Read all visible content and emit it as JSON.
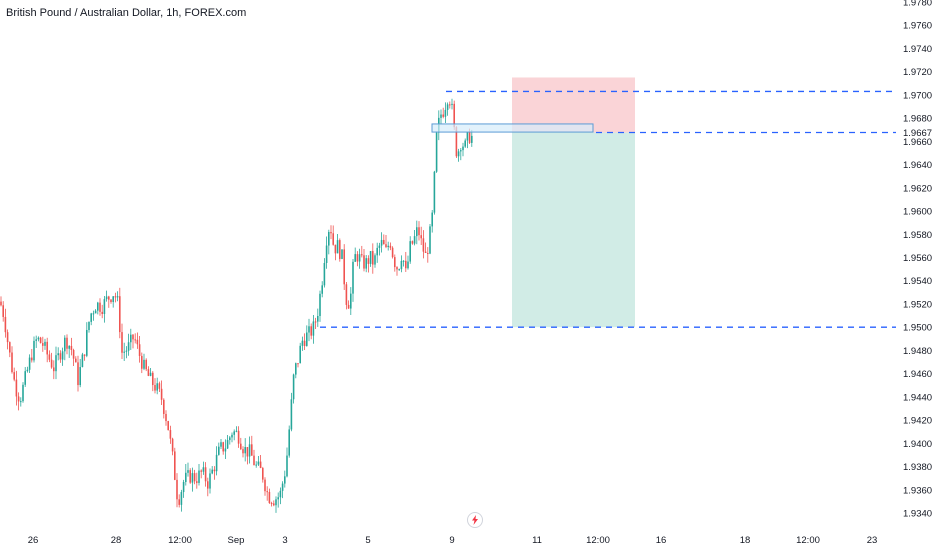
{
  "header": {
    "title": "British Pound / Australian Dollar, 1h, FOREX.com"
  },
  "colors": {
    "up": "#26a69a",
    "down": "#ef5350",
    "dashed_line": "#2962ff",
    "stop_zone": "#f8c5c9",
    "target_zone": "#b2dfd6",
    "box_fill": "#d6ecfb",
    "box_border": "#5b9bd5",
    "axis_text": "#131722"
  },
  "icons": {
    "replay": "lightning-bolt-icon"
  },
  "chart_data": {
    "type": "candlestick",
    "title": "British Pound / Australian Dollar, 1h, FOREX.com",
    "price_ticks": [
      1.978,
      1.976,
      1.974,
      1.972,
      1.97,
      1.968,
      1.966,
      1.964,
      1.962,
      1.96,
      1.958,
      1.956,
      1.954,
      1.952,
      1.95,
      1.948,
      1.946,
      1.944,
      1.942,
      1.94,
      1.938,
      1.936,
      1.934
    ],
    "price_tick_labels": [
      "1.97800",
      "1.97600",
      "1.97400",
      "1.97200",
      "1.97000",
      "1.96800",
      "1.96676",
      "1.96600",
      "1.96400",
      "1.96200",
      "1.96000",
      "1.95800",
      "1.95600",
      "1.95400",
      "1.95200",
      "1.95000",
      "1.94800",
      "1.94600",
      "1.94400",
      "1.94200",
      "1.94000",
      "1.93800",
      "1.93600",
      "1.93400"
    ],
    "ylim": [
      1.9336,
      1.9782
    ],
    "time_labels": [
      "26",
      "28",
      "12:00",
      "Sep",
      "3",
      "5",
      "9",
      "11",
      "12:00",
      "16",
      "18",
      "12:00",
      "23"
    ],
    "horizontal_levels": [
      1.9703,
      1.96676,
      1.95
    ],
    "position": {
      "entry": 1.96676,
      "stop": 1.9715,
      "target": 1.95
    },
    "zone_box": {
      "top": 1.9675,
      "bottom": 1.9668
    },
    "price_path": [
      {
        "t": 0,
        "p": 1.9522
      },
      {
        "t": 4,
        "p": 1.951
      },
      {
        "t": 9,
        "p": 1.948
      },
      {
        "t": 15,
        "p": 1.945
      },
      {
        "t": 20,
        "p": 1.9438
      },
      {
        "t": 26,
        "p": 1.9458
      },
      {
        "t": 32,
        "p": 1.9478
      },
      {
        "t": 37,
        "p": 1.949
      },
      {
        "t": 43,
        "p": 1.9485
      },
      {
        "t": 48,
        "p": 1.9475
      },
      {
        "t": 54,
        "p": 1.9465
      },
      {
        "t": 60,
        "p": 1.9478
      },
      {
        "t": 66,
        "p": 1.949
      },
      {
        "t": 72,
        "p": 1.948
      },
      {
        "t": 78,
        "p": 1.9455
      },
      {
        "t": 84,
        "p": 1.9478
      },
      {
        "t": 90,
        "p": 1.951
      },
      {
        "t": 96,
        "p": 1.952
      },
      {
        "t": 102,
        "p": 1.9518
      },
      {
        "t": 108,
        "p": 1.9525
      },
      {
        "t": 114,
        "p": 1.953
      },
      {
        "t": 118,
        "p": 1.952
      },
      {
        "t": 122,
        "p": 1.9478
      },
      {
        "t": 128,
        "p": 1.9482
      },
      {
        "t": 134,
        "p": 1.9492
      },
      {
        "t": 138,
        "p": 1.948
      },
      {
        "t": 144,
        "p": 1.9465
      },
      {
        "t": 150,
        "p": 1.9455
      },
      {
        "t": 156,
        "p": 1.9448
      },
      {
        "t": 162,
        "p": 1.9438
      },
      {
        "t": 168,
        "p": 1.9415
      },
      {
        "t": 173,
        "p": 1.9385
      },
      {
        "t": 178,
        "p": 1.935
      },
      {
        "t": 184,
        "p": 1.9368
      },
      {
        "t": 190,
        "p": 1.9372
      },
      {
        "t": 196,
        "p": 1.937
      },
      {
        "t": 202,
        "p": 1.9375
      },
      {
        "t": 208,
        "p": 1.9366
      },
      {
        "t": 214,
        "p": 1.938
      },
      {
        "t": 220,
        "p": 1.9395
      },
      {
        "t": 226,
        "p": 1.9398
      },
      {
        "t": 232,
        "p": 1.941
      },
      {
        "t": 238,
        "p": 1.9408
      },
      {
        "t": 244,
        "p": 1.9395
      },
      {
        "t": 250,
        "p": 1.9392
      },
      {
        "t": 256,
        "p": 1.938
      },
      {
        "t": 262,
        "p": 1.9375
      },
      {
        "t": 268,
        "p": 1.9355
      },
      {
        "t": 274,
        "p": 1.9352
      },
      {
        "t": 280,
        "p": 1.9355
      },
      {
        "t": 286,
        "p": 1.938
      },
      {
        "t": 290,
        "p": 1.942
      },
      {
        "t": 294,
        "p": 1.946
      },
      {
        "t": 298,
        "p": 1.9472
      },
      {
        "t": 302,
        "p": 1.9488
      },
      {
        "t": 306,
        "p": 1.9492
      },
      {
        "t": 310,
        "p": 1.9495
      },
      {
        "t": 314,
        "p": 1.95
      },
      {
        "t": 318,
        "p": 1.9515
      },
      {
        "t": 322,
        "p": 1.954
      },
      {
        "t": 326,
        "p": 1.9575
      },
      {
        "t": 330,
        "p": 1.959
      },
      {
        "t": 334,
        "p": 1.9568
      },
      {
        "t": 338,
        "p": 1.957
      },
      {
        "t": 342,
        "p": 1.956
      },
      {
        "t": 346,
        "p": 1.9525
      },
      {
        "t": 350,
        "p": 1.952
      },
      {
        "t": 354,
        "p": 1.956
      },
      {
        "t": 358,
        "p": 1.9562
      },
      {
        "t": 362,
        "p": 1.9555
      },
      {
        "t": 366,
        "p": 1.9555
      },
      {
        "t": 370,
        "p": 1.956
      },
      {
        "t": 374,
        "p": 1.9555
      },
      {
        "t": 378,
        "p": 1.9568
      },
      {
        "t": 382,
        "p": 1.9572
      },
      {
        "t": 386,
        "p": 1.9565
      },
      {
        "t": 390,
        "p": 1.9575
      },
      {
        "t": 394,
        "p": 1.9558
      },
      {
        "t": 398,
        "p": 1.955
      },
      {
        "t": 402,
        "p": 1.9565
      },
      {
        "t": 406,
        "p": 1.9545
      },
      {
        "t": 410,
        "p": 1.9568
      },
      {
        "t": 414,
        "p": 1.9575
      },
      {
        "t": 418,
        "p": 1.9585
      },
      {
        "t": 422,
        "p": 1.957
      },
      {
        "t": 426,
        "p": 1.956
      },
      {
        "t": 430,
        "p": 1.958
      },
      {
        "t": 433,
        "p": 1.96
      },
      {
        "t": 436,
        "p": 1.966
      },
      {
        "t": 440,
        "p": 1.9682
      },
      {
        "t": 444,
        "p": 1.9688
      },
      {
        "t": 448,
        "p": 1.97
      },
      {
        "t": 451,
        "p": 1.9695
      },
      {
        "t": 454,
        "p": 1.967
      },
      {
        "t": 457,
        "p": 1.9648
      },
      {
        "t": 461,
        "p": 1.966
      },
      {
        "t": 465,
        "p": 1.9655
      },
      {
        "t": 469,
        "p": 1.9665
      },
      {
        "t": 473,
        "p": 1.9663
      }
    ]
  }
}
